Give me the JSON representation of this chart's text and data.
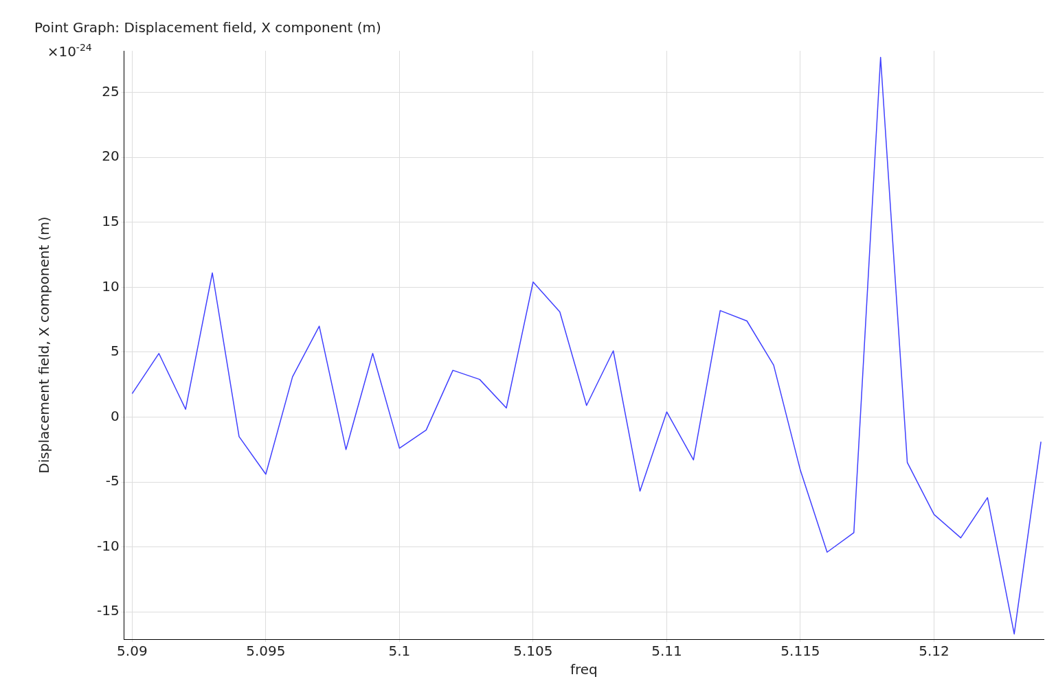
{
  "chart_data": {
    "type": "line",
    "title": "Point Graph: Displacement field, X component (m)",
    "xlabel": "freq",
    "ylabel": "Displacement field, X component (m)",
    "annotations": [
      "×10$^{-24}$"
    ],
    "x": [
      5.09,
      5.091,
      5.092,
      5.093,
      5.094,
      5.095,
      5.096,
      5.097,
      5.098,
      5.099,
      5.1,
      5.101,
      5.102,
      5.103,
      5.104,
      5.105,
      5.106,
      5.107,
      5.108,
      5.109,
      5.11,
      5.111,
      5.112,
      5.113,
      5.114,
      5.115,
      5.116,
      5.117,
      5.118,
      5.119,
      5.12,
      5.121,
      5.122,
      5.123,
      5.124
    ],
    "series": [
      {
        "color": "#4040ff",
        "values": [
          1.8,
          4.9,
          0.6,
          11.1,
          -1.5,
          -4.4,
          3.1,
          7.0,
          -2.5,
          4.9,
          -2.4,
          -1.0,
          3.6,
          2.9,
          0.7,
          10.4,
          8.1,
          0.9,
          5.1,
          -5.7,
          0.4,
          -3.3,
          8.2,
          7.4,
          4.0,
          -4.1,
          -10.4,
          -8.9,
          27.7,
          -3.5,
          -7.5,
          -9.3,
          -6.2,
          -16.7,
          -1.9
        ]
      }
    ],
    "xlim": [
      5.0897,
      5.1241
    ],
    "xticks": [
      5.09,
      5.095,
      5.1,
      5.105,
      5.11,
      5.115,
      5.12
    ],
    "ylim": [
      -17.1,
      28.2
    ],
    "yticks": [
      -15,
      -10,
      -5,
      0,
      5,
      10,
      15,
      20,
      25
    ],
    "grid": true,
    "legend": false,
    "marker": "none",
    "line_style": "solid"
  }
}
